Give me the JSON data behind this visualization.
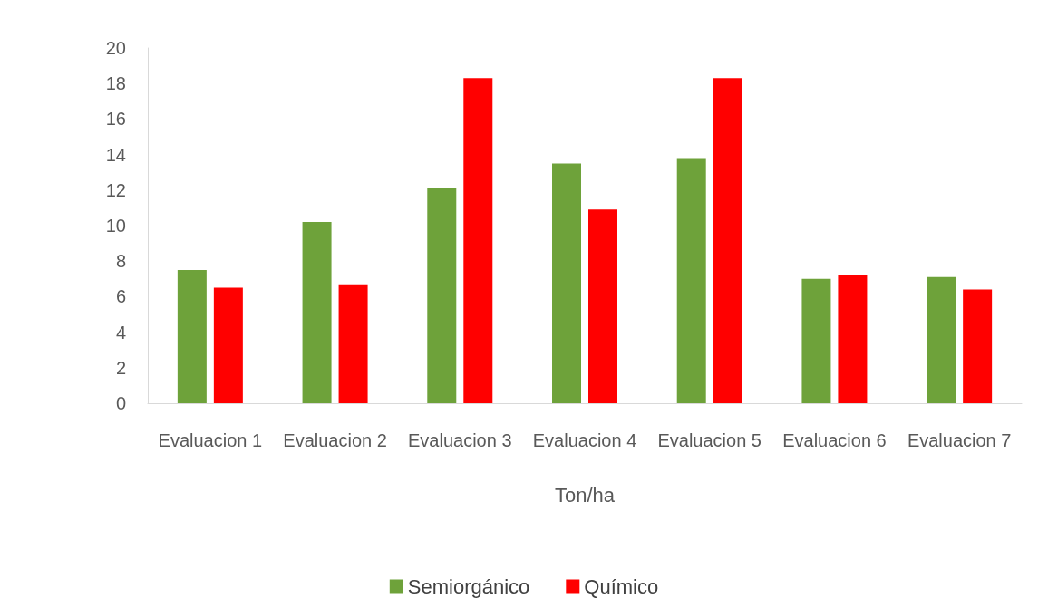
{
  "chart_data": {
    "type": "bar",
    "categories": [
      "Evaluacion 1",
      "Evaluacion 2",
      "Evaluacion 3",
      "Evaluacion 4",
      "Evaluacion 5",
      "Evaluacion 6",
      "Evaluacion 7"
    ],
    "xlabel": "Ton/ha",
    "series": [
      {
        "name": "Semiorgánico",
        "color": "#6ea23a",
        "values": [
          7.5,
          10.2,
          12.1,
          13.5,
          13.8,
          7.0,
          7.1
        ]
      },
      {
        "name": "Químico",
        "color": "#ff0000",
        "values": [
          6.5,
          6.7,
          18.3,
          10.9,
          18.3,
          7.2,
          6.4
        ]
      }
    ],
    "ylim": [
      0,
      20
    ],
    "yticks": [
      0,
      2,
      4,
      6,
      8,
      10,
      12,
      14,
      16,
      18,
      20
    ],
    "grid": false,
    "legend": "bottom"
  }
}
